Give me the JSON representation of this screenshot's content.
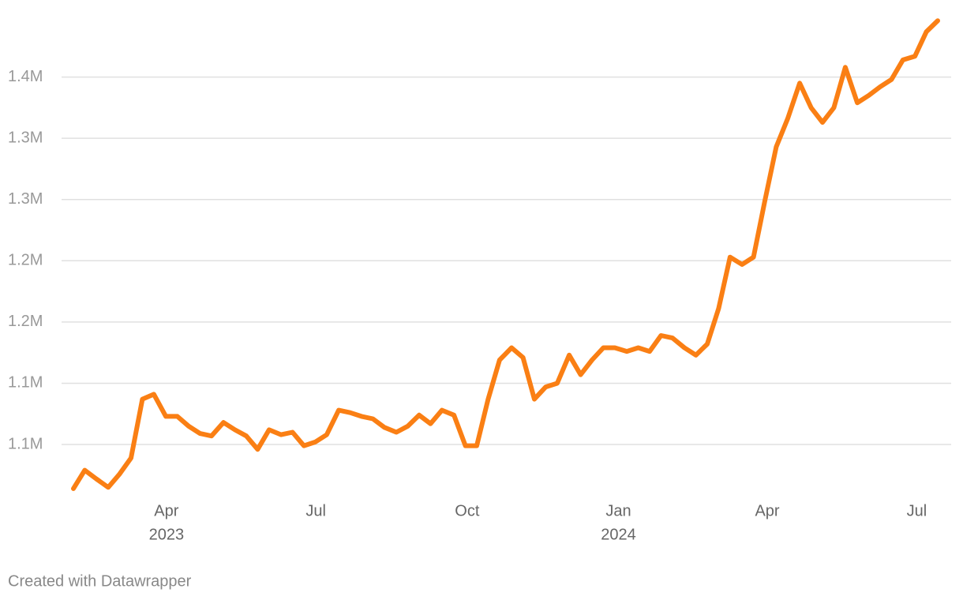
{
  "chart_data": {
    "type": "line",
    "color": "#fa7f14",
    "grid": true,
    "x": [
      2023.092,
      2023.111,
      2023.13,
      2023.15,
      2023.169,
      2023.188,
      2023.207,
      2023.226,
      2023.246,
      2023.265,
      2023.284,
      2023.303,
      2023.322,
      2023.342,
      2023.361,
      2023.38,
      2023.399,
      2023.418,
      2023.438,
      2023.457,
      2023.476,
      2023.495,
      2023.514,
      2023.534,
      2023.553,
      2023.572,
      2023.591,
      2023.61,
      2023.63,
      2023.649,
      2023.668,
      2023.687,
      2023.706,
      2023.726,
      2023.745,
      2023.764,
      2023.783,
      2023.802,
      2023.822,
      2023.841,
      2023.86,
      2023.879,
      2023.898,
      2023.918,
      2023.937,
      2023.956,
      2023.975,
      2023.994,
      2024.014,
      2024.033,
      2024.052,
      2024.071,
      2024.09,
      2024.11,
      2024.129,
      2024.148,
      2024.167,
      2024.186,
      2024.206,
      2024.225,
      2024.244,
      2024.263,
      2024.282,
      2024.302,
      2024.321,
      2024.34,
      2024.359,
      2024.378,
      2024.398,
      2024.417,
      2024.436,
      2024.455,
      2024.474,
      2024.494,
      2024.513,
      2024.532
    ],
    "values": [
      1014000,
      1029000,
      1022000,
      1015000,
      1026000,
      1039000,
      1087000,
      1091000,
      1073000,
      1073000,
      1065000,
      1059000,
      1057000,
      1068000,
      1062000,
      1057000,
      1046000,
      1062000,
      1058000,
      1060000,
      1049000,
      1052000,
      1058000,
      1078000,
      1076000,
      1073000,
      1071000,
      1064000,
      1060000,
      1065000,
      1074000,
      1067000,
      1078000,
      1074000,
      1049000,
      1049000,
      1087000,
      1119000,
      1129000,
      1121000,
      1087000,
      1097000,
      1100000,
      1123000,
      1107000,
      1119000,
      1129000,
      1129000,
      1126000,
      1129000,
      1126000,
      1139000,
      1137000,
      1129000,
      1123000,
      1132000,
      1161000,
      1203000,
      1197000,
      1203000,
      1249000,
      1293000,
      1316000,
      1345000,
      1325000,
      1313000,
      1325000,
      1358000,
      1329000,
      1335000,
      1342000,
      1348000,
      1364000,
      1367000,
      1387000,
      1396000
    ],
    "xlim": [
      2023.092,
      2024.532
    ],
    "xticks": [
      {
        "value": 2023.247,
        "label": "Apr"
      },
      {
        "value": 2023.496,
        "label": "Jul"
      },
      {
        "value": 2023.748,
        "label": "Oct"
      },
      {
        "value": 2024.0,
        "label": "Jan"
      },
      {
        "value": 2024.248,
        "label": "Apr"
      },
      {
        "value": 2024.497,
        "label": "Jul"
      }
    ],
    "xtick_years": [
      {
        "value": 2023.247,
        "label": "2023"
      },
      {
        "value": 2024.0,
        "label": "2024"
      }
    ],
    "ylim": [
      1012000,
      1400000
    ],
    "yticks": [
      {
        "value": 1050000,
        "label": "1.1M"
      },
      {
        "value": 1100000,
        "label": "1.1M"
      },
      {
        "value": 1150000,
        "label": "1.2M"
      },
      {
        "value": 1200000,
        "label": "1.2M"
      },
      {
        "value": 1250000,
        "label": "1.3M"
      },
      {
        "value": 1300000,
        "label": "1.3M"
      },
      {
        "value": 1350000,
        "label": "1.4M"
      }
    ],
    "footer": "Created with Datawrapper"
  }
}
